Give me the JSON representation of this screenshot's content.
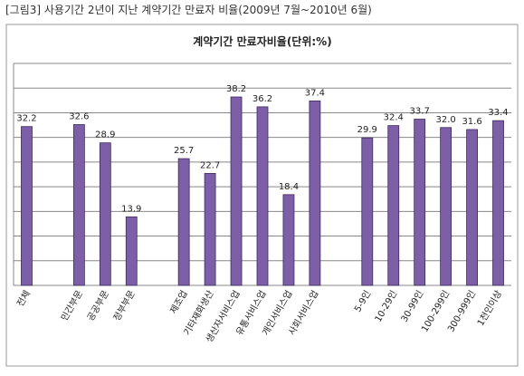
{
  "header": "[그림3] 사용기간 2년이 지난 계약기간 만료자 비율(2009년 7월~2010년 6월)",
  "chart_data": {
    "type": "bar",
    "title": "계약기간 만료자비율(단위:%)",
    "categories": [
      "전체",
      null,
      "민간부문",
      "공공부문",
      "정부부문",
      null,
      "제조업",
      "기타재화생산",
      "생산자서비스업",
      "유통서비스업",
      "개인서비스업",
      "사회서비스업",
      null,
      "5-9인",
      "10-29인",
      "30-99인",
      "100-299인",
      "300-999인",
      "1천인이상"
    ],
    "values": [
      32.2,
      null,
      32.6,
      28.9,
      13.9,
      null,
      25.7,
      22.7,
      38.2,
      36.2,
      18.4,
      37.4,
      null,
      29.9,
      32.4,
      33.7,
      32.0,
      31.6,
      33.4
    ],
    "value_labels": [
      "32.2",
      null,
      "32.6",
      "28.9",
      "13.9",
      null,
      "25.7",
      "22.7",
      "38.2",
      "36.2",
      "18.4",
      "37.4",
      null,
      "29.9",
      "32.4",
      "33.7",
      "32.0",
      "31.6",
      "33.4"
    ],
    "color": "#7d5fa8",
    "ylim": [
      0,
      45
    ],
    "yticks": [
      0,
      5,
      10,
      15,
      20,
      25,
      30,
      35,
      40,
      45
    ],
    "grid": true
  }
}
